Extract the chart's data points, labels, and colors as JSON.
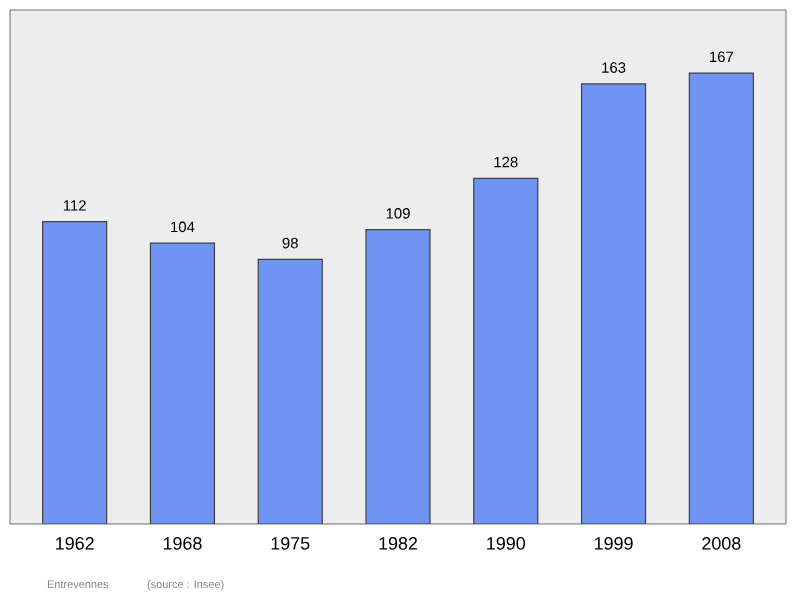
{
  "chart_data": {
    "type": "bar",
    "categories": [
      "1962",
      "1968",
      "1975",
      "1982",
      "1990",
      "1999",
      "2008"
    ],
    "values": [
      112,
      104,
      98,
      109,
      128,
      163,
      167
    ],
    "color": "#7094f4",
    "data_labels": true,
    "tick_labels": "x",
    "annotations": [
      "Entrevennes",
      "(source : Insee)"
    ]
  }
}
